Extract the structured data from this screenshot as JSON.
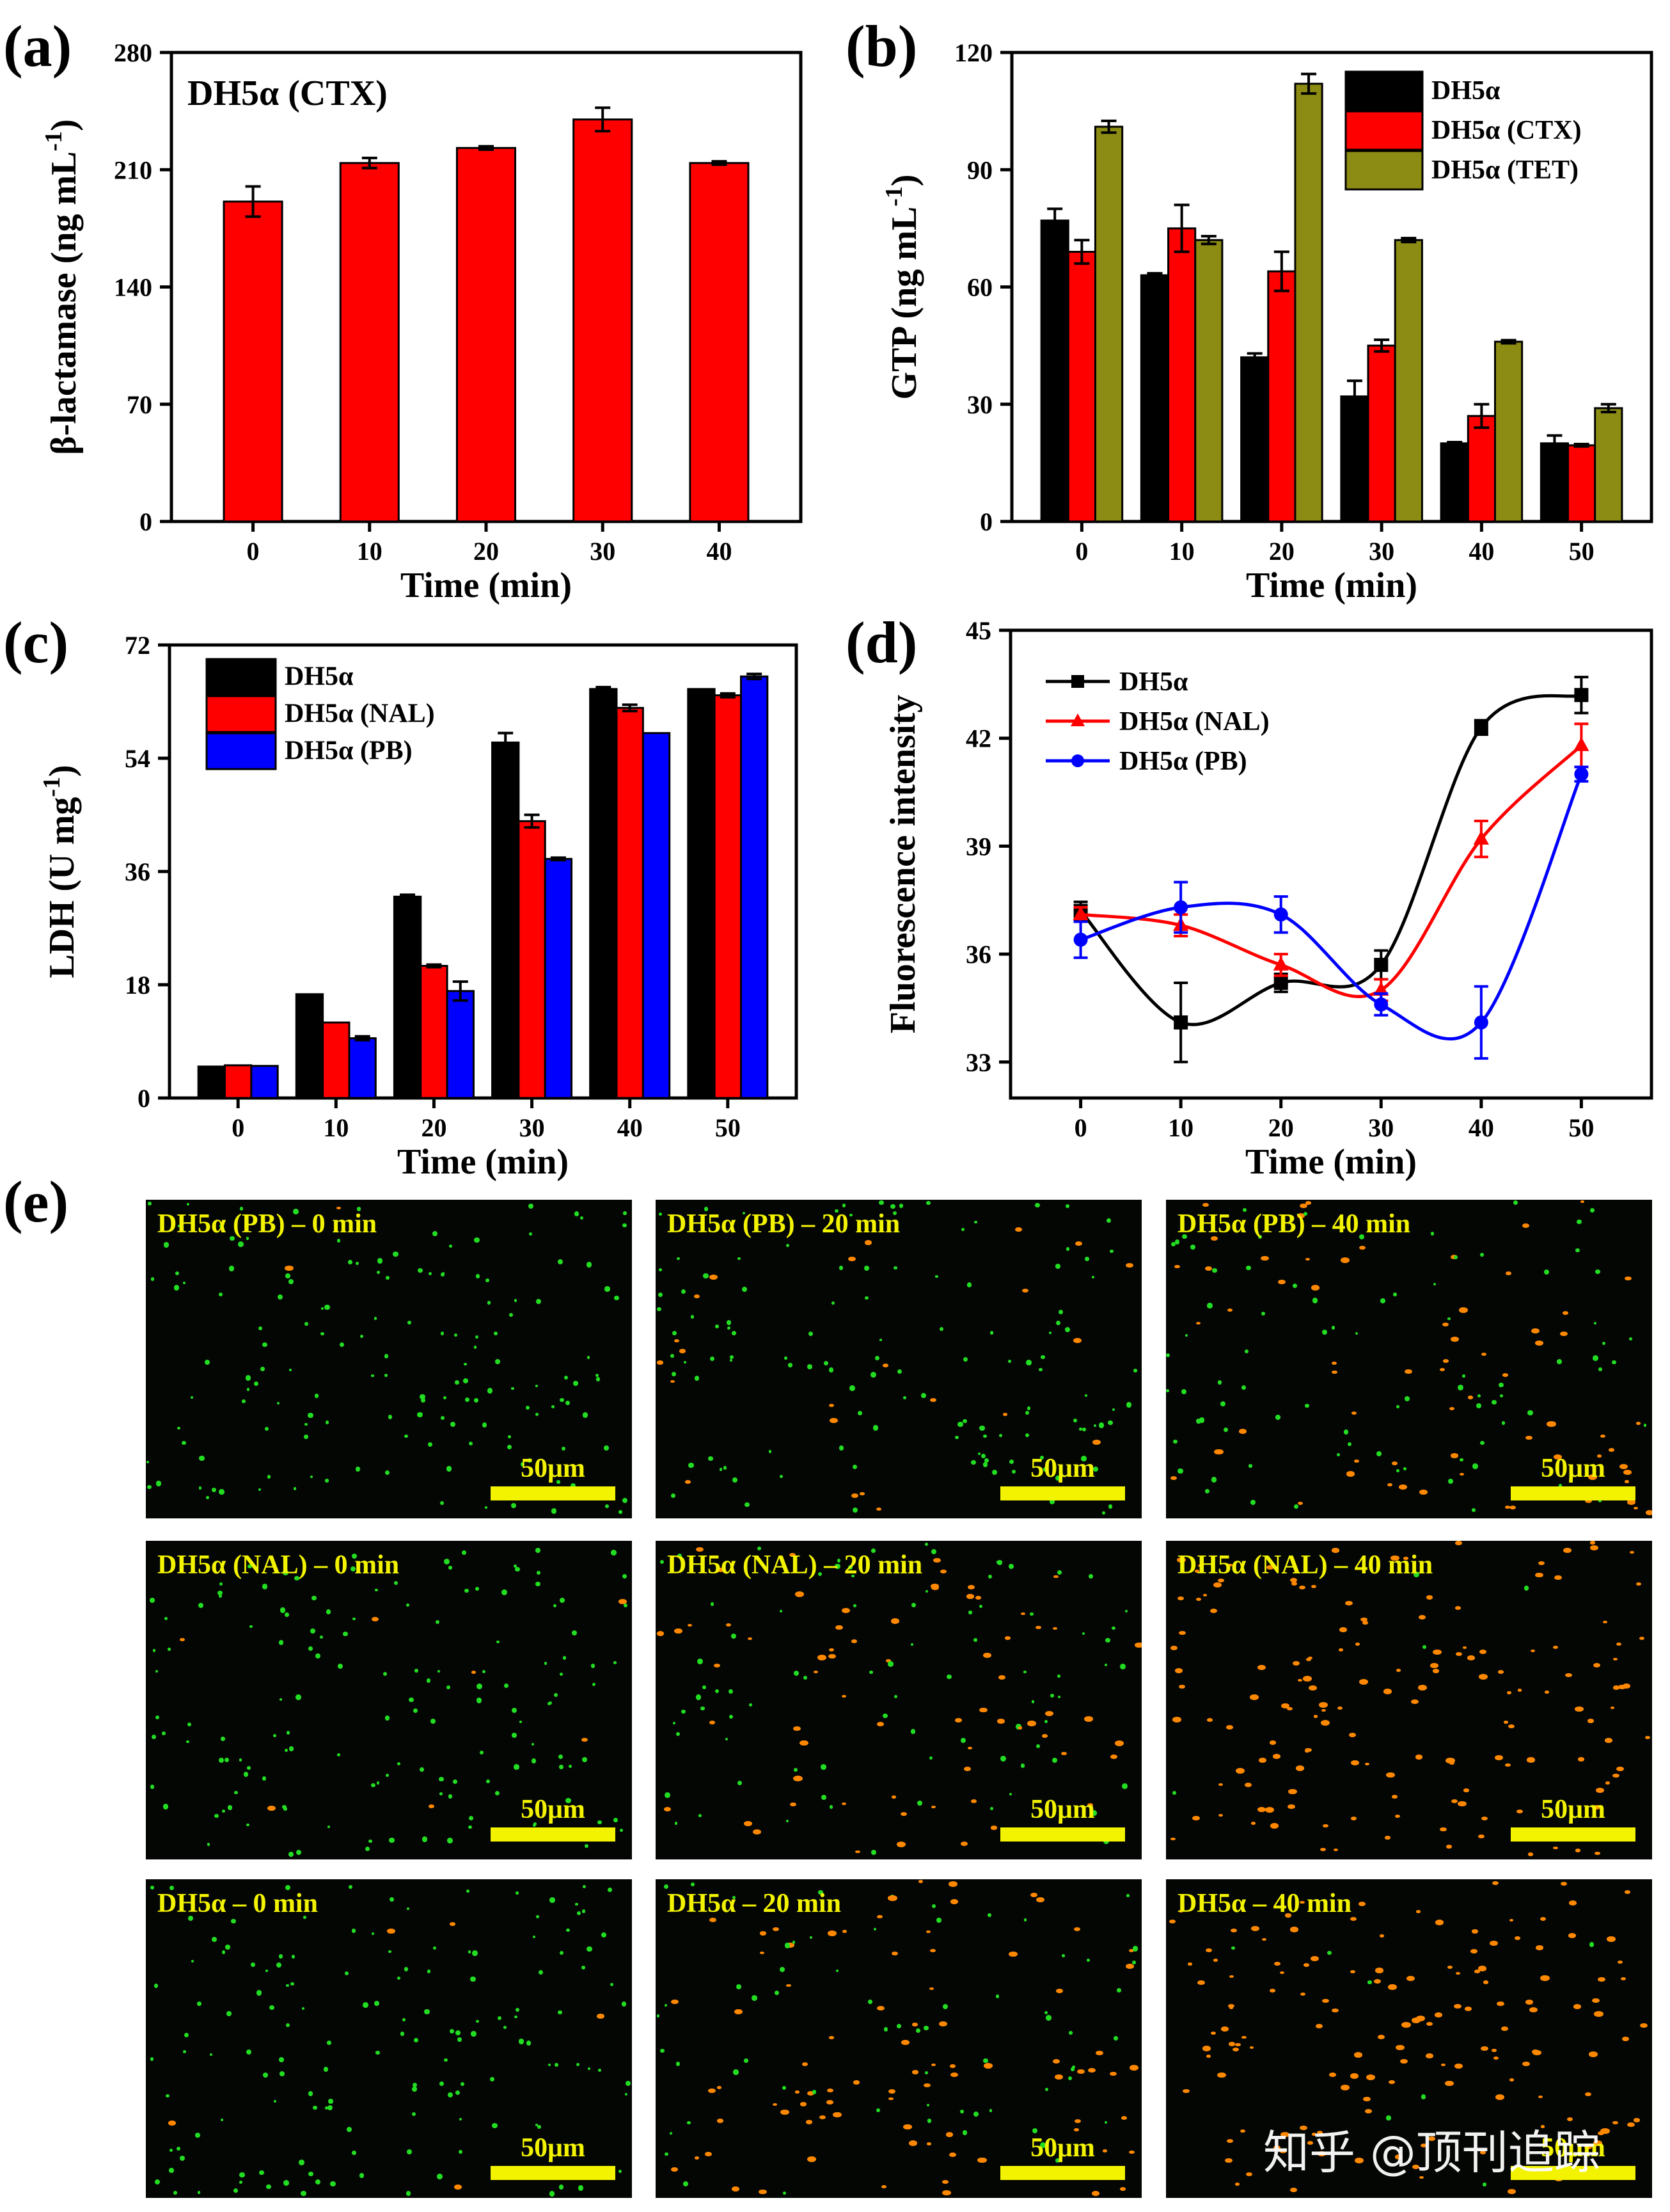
{
  "panel_labels": {
    "a": "(a)",
    "b": "(b)",
    "c": "(c)",
    "d": "(d)",
    "e": "(e)"
  },
  "colors": {
    "black": "#000000",
    "red": "#ff0000",
    "olive": "#8c8c14",
    "blue": "#0000ff",
    "yellow": "#f3f300",
    "green": "#22dd22",
    "orange": "#ff8800"
  },
  "chart_data": [
    {
      "id": "a",
      "type": "bar",
      "annotation": "DH5α (CTX)",
      "xlabel": "Time (min)",
      "ylabel": "β-lactamase (ng mL",
      "ylabel_sup": "-1",
      "ylabel_end": ")",
      "ylim": [
        0,
        280
      ],
      "yticks": [
        "0",
        "70",
        "140",
        "210",
        "280"
      ],
      "categories": [
        "0",
        "10",
        "20",
        "30",
        "40"
      ],
      "series": [
        {
          "name": "DH5α (CTX)",
          "color": "#ff0000",
          "values": [
            191,
            214,
            223,
            240,
            214
          ],
          "errors": [
            9,
            3,
            1,
            7,
            1
          ]
        }
      ]
    },
    {
      "id": "b",
      "type": "bar",
      "xlabel": "Time (min)",
      "ylabel": "GTP (ng mL",
      "ylabel_sup": "-1",
      "ylabel_end": ")",
      "ylim": [
        0,
        120
      ],
      "yticks": [
        "0",
        "30",
        "60",
        "90",
        "120"
      ],
      "categories": [
        "0",
        "10",
        "20",
        "30",
        "40",
        "50"
      ],
      "legend": "top-right",
      "series": [
        {
          "name": "DH5α",
          "color": "#000000",
          "values": [
            77,
            63,
            42,
            32,
            20,
            20
          ],
          "errors": [
            3,
            0.5,
            1,
            4,
            0.3,
            2
          ]
        },
        {
          "name": "DH5α (CTX)",
          "color": "#ff0000",
          "values": [
            69,
            75,
            64,
            45,
            27,
            19.5
          ],
          "errors": [
            3,
            6,
            5,
            1.5,
            3,
            0.3
          ]
        },
        {
          "name": "DH5α (TET)",
          "color": "#8c8c14",
          "values": [
            101,
            72,
            112,
            72,
            46,
            29
          ],
          "errors": [
            1.5,
            1,
            2.5,
            0.5,
            0.4,
            1
          ]
        }
      ]
    },
    {
      "id": "c",
      "type": "bar",
      "xlabel": "Time (min)",
      "ylabel": "LDH (U mg",
      "ylabel_sup": "-1",
      "ylabel_end": ")",
      "ylim": [
        0,
        72
      ],
      "yticks": [
        "0",
        "18",
        "36",
        "54",
        "72"
      ],
      "categories": [
        "0",
        "10",
        "20",
        "30",
        "40",
        "50"
      ],
      "legend": "top-left",
      "series": [
        {
          "name": "DH5α",
          "color": "#000000",
          "values": [
            5,
            16.5,
            32,
            56.5,
            65,
            65
          ],
          "errors": [
            0,
            0,
            0.3,
            1.5,
            0.3,
            0
          ]
        },
        {
          "name": "DH5α (NAL)",
          "color": "#ff0000",
          "values": [
            5.2,
            12,
            21,
            44,
            62,
            64
          ],
          "errors": [
            0,
            0,
            0.2,
            1,
            0.5,
            0.3
          ]
        },
        {
          "name": "DH5α (PB)",
          "color": "#0000ff",
          "values": [
            5.1,
            9.5,
            17,
            38,
            58,
            67
          ],
          "errors": [
            0,
            0.3,
            1.5,
            0.2,
            0,
            0.4
          ]
        }
      ]
    },
    {
      "id": "d",
      "type": "line",
      "xlabel": "Time (min)",
      "ylabel": "Fluorescence intensity",
      "ylim": [
        32,
        45
      ],
      "yticks": [
        "33",
        "36",
        "39",
        "42",
        "45"
      ],
      "x": [
        0,
        10,
        20,
        30,
        40,
        50
      ],
      "xticks": [
        "0",
        "10",
        "20",
        "30",
        "40",
        "50"
      ],
      "legend": "top-left",
      "series": [
        {
          "name": "DH5α",
          "color": "#000000",
          "marker": "square",
          "values": [
            37.2,
            34.1,
            35.2,
            35.7,
            42.3,
            43.2
          ],
          "errors": [
            0.25,
            1.1,
            0.25,
            0.4,
            0.2,
            0.5
          ]
        },
        {
          "name": "DH5α (NAL)",
          "color": "#ff0000",
          "marker": "triangle",
          "values": [
            37.1,
            36.8,
            35.7,
            35.0,
            39.2,
            41.8
          ],
          "errors": [
            0.2,
            0.3,
            0.3,
            0.3,
            0.5,
            0.6
          ]
        },
        {
          "name": "DH5α (PB)",
          "color": "#0000ff",
          "marker": "circle",
          "values": [
            36.4,
            37.3,
            37.1,
            34.6,
            34.1,
            41.0
          ],
          "errors": [
            0.5,
            0.7,
            0.5,
            0.3,
            1.0,
            0.2
          ]
        }
      ]
    }
  ],
  "micrographs": {
    "scale": "50μm",
    "images": [
      {
        "label": "DH5α (PB) – 0 min",
        "red_ratio": 0.02
      },
      {
        "label": "DH5α (PB) – 20 min",
        "red_ratio": 0.12
      },
      {
        "label": "DH5α (PB) – 40 min",
        "red_ratio": 0.45
      },
      {
        "label": "DH5α (NAL) – 0 min",
        "red_ratio": 0.04
      },
      {
        "label": "DH5α (NAL) – 20 min",
        "red_ratio": 0.45
      },
      {
        "label": "DH5α (NAL) – 40 min",
        "red_ratio": 0.97
      },
      {
        "label": "DH5α – 0 min",
        "red_ratio": 0.01
      },
      {
        "label": "DH5α – 20 min",
        "red_ratio": 0.55
      },
      {
        "label": "DH5α – 40 min",
        "red_ratio": 0.95
      }
    ]
  },
  "watermark": "知乎 @顶刊追踪"
}
